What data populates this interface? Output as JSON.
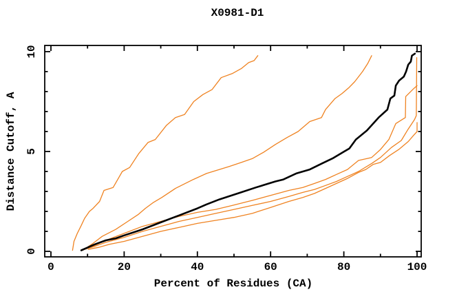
{
  "title": "X0981-D1",
  "chart_data": {
    "type": "line",
    "title": "X0981-D1",
    "xlabel": "Percent of Residues (CA)",
    "ylabel": "Distance Cutoff, A",
    "xlim": [
      -1.69,
      101.13
    ],
    "ylim": [
      -0.276,
      10.31
    ],
    "x_ticks_major": [
      0,
      20,
      40,
      60,
      80,
      100
    ],
    "x_ticks_minor": [
      10,
      30,
      50,
      70,
      90
    ],
    "y_ticks_major": [
      0,
      5,
      10
    ],
    "y_ticks_minor": [
      1,
      2,
      3,
      4,
      6,
      7,
      8,
      9
    ],
    "grid": false,
    "legend": "none",
    "colors": {
      "orange_model": "#ef8220",
      "black_reference": "#000000"
    },
    "series": [
      {
        "name": "orange-curve-1",
        "color": "#ef8220",
        "width": 1.3,
        "points": [
          [
            5.9,
            0.05
          ],
          [
            6.3,
            0.5
          ],
          [
            7.2,
            0.9
          ],
          [
            8.3,
            1.3
          ],
          [
            9.2,
            1.65
          ],
          [
            10.5,
            2.0
          ],
          [
            11.5,
            2.15
          ],
          [
            13.3,
            2.5
          ],
          [
            14.5,
            3.05
          ],
          [
            17,
            3.2
          ],
          [
            19.5,
            4.0
          ],
          [
            21.5,
            4.2
          ],
          [
            24,
            4.9
          ],
          [
            26.5,
            5.45
          ],
          [
            28.5,
            5.6
          ],
          [
            31.5,
            6.3
          ],
          [
            34,
            6.7
          ],
          [
            36.5,
            6.85
          ],
          [
            39,
            7.5
          ],
          [
            41.5,
            7.85
          ],
          [
            44,
            8.1
          ],
          [
            46.5,
            8.7
          ],
          [
            49.5,
            8.9
          ],
          [
            52,
            9.15
          ],
          [
            54,
            9.45
          ],
          [
            55.5,
            9.55
          ],
          [
            56.5,
            9.8
          ]
        ]
      },
      {
        "name": "orange-curve-2",
        "color": "#ef8220",
        "width": 1.3,
        "points": [
          [
            8.7,
            0.05
          ],
          [
            11.5,
            0.4
          ],
          [
            14,
            0.75
          ],
          [
            17.7,
            1.1
          ],
          [
            21,
            1.5
          ],
          [
            23.9,
            1.85
          ],
          [
            25.8,
            2.15
          ],
          [
            28,
            2.45
          ],
          [
            30.3,
            2.7
          ],
          [
            34,
            3.15
          ],
          [
            38.9,
            3.6
          ],
          [
            42.5,
            3.9
          ],
          [
            48.7,
            4.25
          ],
          [
            52,
            4.45
          ],
          [
            55.1,
            4.65
          ],
          [
            58,
            4.95
          ],
          [
            61.3,
            5.35
          ],
          [
            64.5,
            5.7
          ],
          [
            67.5,
            6.0
          ],
          [
            70.7,
            6.5
          ],
          [
            73.9,
            6.7
          ],
          [
            75.0,
            7.1
          ],
          [
            77.6,
            7.65
          ],
          [
            79.5,
            7.9
          ],
          [
            81.4,
            8.2
          ],
          [
            83,
            8.5
          ],
          [
            85.1,
            9.0
          ],
          [
            86.5,
            9.4
          ],
          [
            87.6,
            9.8
          ]
        ]
      },
      {
        "name": "orange-curve-3",
        "color": "#ef8220",
        "width": 1.3,
        "points": [
          [
            9.5,
            0.15
          ],
          [
            12,
            0.3
          ],
          [
            15,
            0.55
          ],
          [
            20,
            0.9
          ],
          [
            25,
            1.25
          ],
          [
            30,
            1.5
          ],
          [
            35,
            1.75
          ],
          [
            40,
            1.95
          ],
          [
            45,
            2.1
          ],
          [
            49.6,
            2.3
          ],
          [
            55,
            2.55
          ],
          [
            60,
            2.8
          ],
          [
            65,
            3.05
          ],
          [
            68.8,
            3.2
          ],
          [
            72,
            3.4
          ],
          [
            75,
            3.6
          ],
          [
            78,
            3.85
          ],
          [
            81,
            4.1
          ],
          [
            84,
            4.55
          ],
          [
            87.6,
            4.7
          ],
          [
            90,
            5.1
          ],
          [
            92.3,
            5.6
          ],
          [
            94.2,
            6.4
          ],
          [
            96.8,
            6.7
          ],
          [
            96.9,
            7.75
          ],
          [
            99.1,
            8.15
          ],
          [
            100,
            8.3
          ]
        ]
      },
      {
        "name": "orange-curve-4",
        "color": "#ef8220",
        "width": 1.3,
        "points": [
          [
            9.2,
            0.1
          ],
          [
            12,
            0.25
          ],
          [
            15,
            0.45
          ],
          [
            20,
            0.7
          ],
          [
            25,
            1.0
          ],
          [
            30,
            1.25
          ],
          [
            35,
            1.5
          ],
          [
            40,
            1.7
          ],
          [
            45,
            1.9
          ],
          [
            50,
            2.1
          ],
          [
            55,
            2.3
          ],
          [
            60,
            2.5
          ],
          [
            65,
            2.75
          ],
          [
            68.8,
            2.95
          ],
          [
            72,
            3.1
          ],
          [
            75,
            3.3
          ],
          [
            78,
            3.5
          ],
          [
            81,
            3.75
          ],
          [
            84,
            4.0
          ],
          [
            87.6,
            4.4
          ],
          [
            90,
            4.7
          ],
          [
            93,
            5.2
          ],
          [
            95.7,
            5.55
          ],
          [
            97.5,
            6.1
          ],
          [
            99.3,
            6.6
          ],
          [
            99.8,
            6.8
          ],
          [
            99.9,
            9.7
          ]
        ]
      },
      {
        "name": "orange-curve-5",
        "color": "#ef8220",
        "width": 1.3,
        "points": [
          [
            10.2,
            0.1
          ],
          [
            13,
            0.2
          ],
          [
            16,
            0.35
          ],
          [
            20,
            0.5
          ],
          [
            25,
            0.75
          ],
          [
            30,
            1.0
          ],
          [
            35,
            1.2
          ],
          [
            40,
            1.4
          ],
          [
            45,
            1.55
          ],
          [
            50,
            1.7
          ],
          [
            55,
            1.9
          ],
          [
            60,
            2.2
          ],
          [
            65,
            2.5
          ],
          [
            68.8,
            2.7
          ],
          [
            72,
            2.9
          ],
          [
            75,
            3.15
          ],
          [
            78,
            3.4
          ],
          [
            81,
            3.65
          ],
          [
            84,
            3.95
          ],
          [
            86,
            4.1
          ],
          [
            88,
            4.35
          ],
          [
            90,
            4.45
          ],
          [
            92.5,
            4.8
          ],
          [
            95,
            5.1
          ],
          [
            97.6,
            5.5
          ],
          [
            99,
            5.8
          ],
          [
            100,
            6.0
          ],
          [
            100,
            6.45
          ]
        ]
      },
      {
        "name": "black-curve",
        "color": "#000000",
        "width": 2.6,
        "points": [
          [
            8.3,
            0.05
          ],
          [
            12,
            0.35
          ],
          [
            15,
            0.55
          ],
          [
            17.7,
            0.65
          ],
          [
            20,
            0.8
          ],
          [
            25,
            1.1
          ],
          [
            30,
            1.45
          ],
          [
            35,
            1.8
          ],
          [
            40,
            2.15
          ],
          [
            42.5,
            2.35
          ],
          [
            46,
            2.6
          ],
          [
            51.9,
            2.95
          ],
          [
            56,
            3.2
          ],
          [
            61.3,
            3.5
          ],
          [
            63.5,
            3.6
          ],
          [
            67,
            3.9
          ],
          [
            70.7,
            4.1
          ],
          [
            74,
            4.4
          ],
          [
            76.9,
            4.65
          ],
          [
            80.1,
            5.0
          ],
          [
            81.5,
            5.15
          ],
          [
            83.3,
            5.6
          ],
          [
            86.3,
            6.05
          ],
          [
            89.5,
            6.7
          ],
          [
            91.9,
            7.1
          ],
          [
            92.7,
            7.65
          ],
          [
            93.8,
            7.8
          ],
          [
            94.2,
            8.3
          ],
          [
            95.1,
            8.55
          ],
          [
            96.4,
            8.75
          ],
          [
            97,
            9.0
          ],
          [
            97.6,
            9.35
          ],
          [
            98.3,
            9.5
          ],
          [
            98.6,
            9.8
          ],
          [
            99.4,
            9.9
          ]
        ]
      }
    ]
  }
}
